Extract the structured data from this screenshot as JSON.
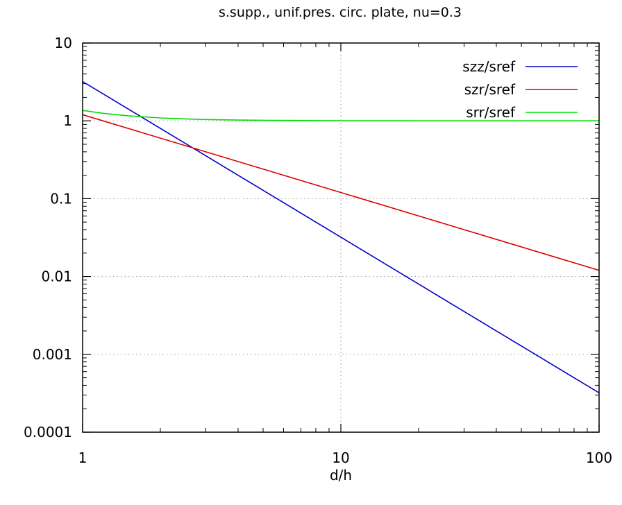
{
  "chart_data": {
    "type": "line",
    "title": "s.supp., unif.pres. circ. plate, nu=0.3",
    "xlabel": "d/h",
    "ylabel": "",
    "xscale": "log",
    "yscale": "log",
    "xlim": [
      1,
      100
    ],
    "ylim": [
      0.0001,
      10
    ],
    "grid": true,
    "legend_position": "top-right",
    "x_ticks": [
      1,
      10,
      100
    ],
    "x_tick_labels": [
      "1",
      "10",
      "100"
    ],
    "y_ticks": [
      0.0001,
      0.001,
      0.01,
      0.1,
      1,
      10
    ],
    "y_tick_labels": [
      "0.0001",
      "0.001",
      "0.01",
      "0.1",
      "1",
      "10"
    ],
    "series": [
      {
        "name": "szz/sref",
        "color": "#0000cc",
        "x": [
          1,
          2,
          5,
          10,
          20,
          50,
          100
        ],
        "y": [
          3.2,
          0.8,
          0.128,
          0.032,
          0.008,
          0.00128,
          0.00032
        ]
      },
      {
        "name": "szr/sref",
        "color": "#dd0000",
        "x": [
          1,
          2,
          5,
          10,
          20,
          50,
          100
        ],
        "y": [
          1.2,
          0.6,
          0.24,
          0.12,
          0.06,
          0.024,
          0.012
        ]
      },
      {
        "name": "srr/sref",
        "color": "#00dd00",
        "x": [
          1,
          1.2,
          1.5,
          2,
          2.5,
          3,
          4,
          5,
          7,
          10,
          20,
          50,
          100
        ],
        "y": [
          1.36,
          1.25,
          1.16,
          1.09,
          1.058,
          1.04,
          1.023,
          1.015,
          1.007,
          1.004,
          1.001,
          1.0,
          1.0
        ]
      }
    ]
  }
}
